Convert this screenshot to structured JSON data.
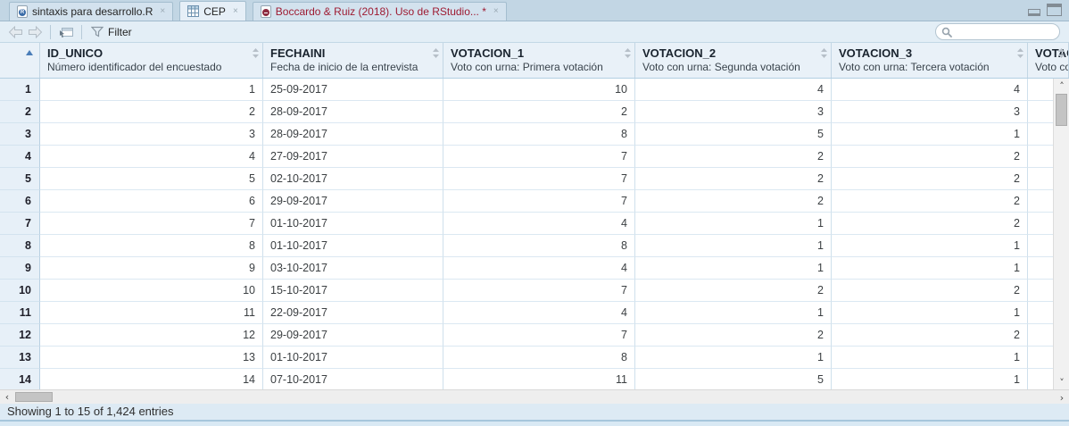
{
  "tabs": [
    {
      "label": "sintaxis para desarrollo.R",
      "icon": "r-script-icon",
      "active": false,
      "close": "×"
    },
    {
      "label": "CEP",
      "icon": "data-grid-icon",
      "active": true,
      "close": "×"
    },
    {
      "label": "Boccardo & Ruiz (2018). Uso de RStudio... *",
      "icon": "rmarkdown-doc-icon",
      "active": false,
      "modified": true,
      "text_color": "#9e1b32",
      "close": "×"
    }
  ],
  "toolbar": {
    "back": "back",
    "forward": "forward",
    "popout": "open-in-new-window",
    "filter_label": "Filter",
    "search_value": "",
    "search_placeholder": ""
  },
  "table": {
    "corner_sort": "ascending",
    "columns": [
      {
        "name": "ID_UNICO",
        "desc": "Número identificador del encuestado"
      },
      {
        "name": "FECHAINI",
        "desc": "Fecha de inicio de la entrevista"
      },
      {
        "name": "VOTACION_1",
        "desc": "Voto con urna: Primera votación"
      },
      {
        "name": "VOTACION_2",
        "desc": "Voto con urna: Segunda votación"
      },
      {
        "name": "VOTACION_3",
        "desc": "Voto con urna: Tercera votación"
      },
      {
        "name": "VOTAC",
        "desc": "Voto co"
      }
    ],
    "rows": [
      {
        "num": "1",
        "cells": [
          "1",
          "25-09-2017",
          "10",
          "4",
          "4",
          ""
        ]
      },
      {
        "num": "2",
        "cells": [
          "2",
          "28-09-2017",
          "2",
          "3",
          "3",
          ""
        ]
      },
      {
        "num": "3",
        "cells": [
          "3",
          "28-09-2017",
          "8",
          "5",
          "1",
          ""
        ]
      },
      {
        "num": "4",
        "cells": [
          "4",
          "27-09-2017",
          "7",
          "2",
          "2",
          ""
        ]
      },
      {
        "num": "5",
        "cells": [
          "5",
          "02-10-2017",
          "7",
          "2",
          "2",
          ""
        ]
      },
      {
        "num": "6",
        "cells": [
          "6",
          "29-09-2017",
          "7",
          "2",
          "2",
          ""
        ]
      },
      {
        "num": "7",
        "cells": [
          "7",
          "01-10-2017",
          "4",
          "1",
          "2",
          ""
        ]
      },
      {
        "num": "8",
        "cells": [
          "8",
          "01-10-2017",
          "8",
          "1",
          "1",
          ""
        ]
      },
      {
        "num": "9",
        "cells": [
          "9",
          "03-10-2017",
          "4",
          "1",
          "1",
          ""
        ]
      },
      {
        "num": "10",
        "cells": [
          "10",
          "15-10-2017",
          "7",
          "2",
          "2",
          ""
        ]
      },
      {
        "num": "11",
        "cells": [
          "11",
          "22-09-2017",
          "4",
          "1",
          "1",
          ""
        ]
      },
      {
        "num": "12",
        "cells": [
          "12",
          "29-09-2017",
          "7",
          "2",
          "2",
          ""
        ]
      },
      {
        "num": "13",
        "cells": [
          "13",
          "01-10-2017",
          "8",
          "1",
          "1",
          ""
        ]
      },
      {
        "num": "14",
        "cells": [
          "14",
          "07-10-2017",
          "11",
          "5",
          "1",
          ""
        ]
      }
    ]
  },
  "status_bar": {
    "text": "Showing 1 to 15 of 1,424 entries"
  },
  "colors": {
    "accent_sort_arrow": "#4a7db8",
    "modified_tab_text": "#9e1b32",
    "header_bg": "#e9f1f8",
    "grid_line": "#cfe0ec",
    "row_header_bg": "#e7f0f8",
    "tabbar_bg": "#c2d6e4",
    "toolbar_bg": "#e3eef6"
  }
}
